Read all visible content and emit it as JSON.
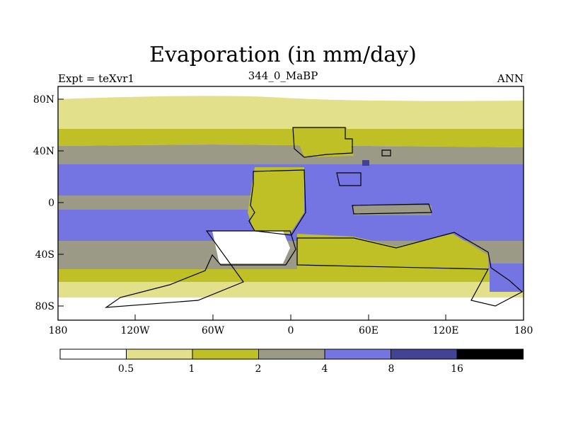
{
  "title": "Evaporation (in mm/day)",
  "subtitle_left": "Expt = teXvr1",
  "subtitle_center": "344_0_MaBP",
  "subtitle_right": "ANN",
  "lat_labels": [
    "80N",
    "40N",
    "0",
    "40S",
    "80S"
  ],
  "lon_labels": [
    "180",
    "120W",
    "60W",
    "0",
    "60E",
    "120E",
    "180"
  ],
  "colorbar": {
    "boundaries": [
      "0.5",
      "1",
      "2",
      "4",
      "8",
      "16"
    ],
    "colors": [
      "#ffffff",
      "#e2e08a",
      "#bfbf26",
      "#9b9a86",
      "#7474e2",
      "#434395",
      "#000000"
    ]
  },
  "colors": {
    "band_low": "#e2e08a",
    "band_mid": "#bfbf26",
    "band_grey": "#9b9a86",
    "band_blue": "#7474e2",
    "band_dark": "#434395"
  }
}
